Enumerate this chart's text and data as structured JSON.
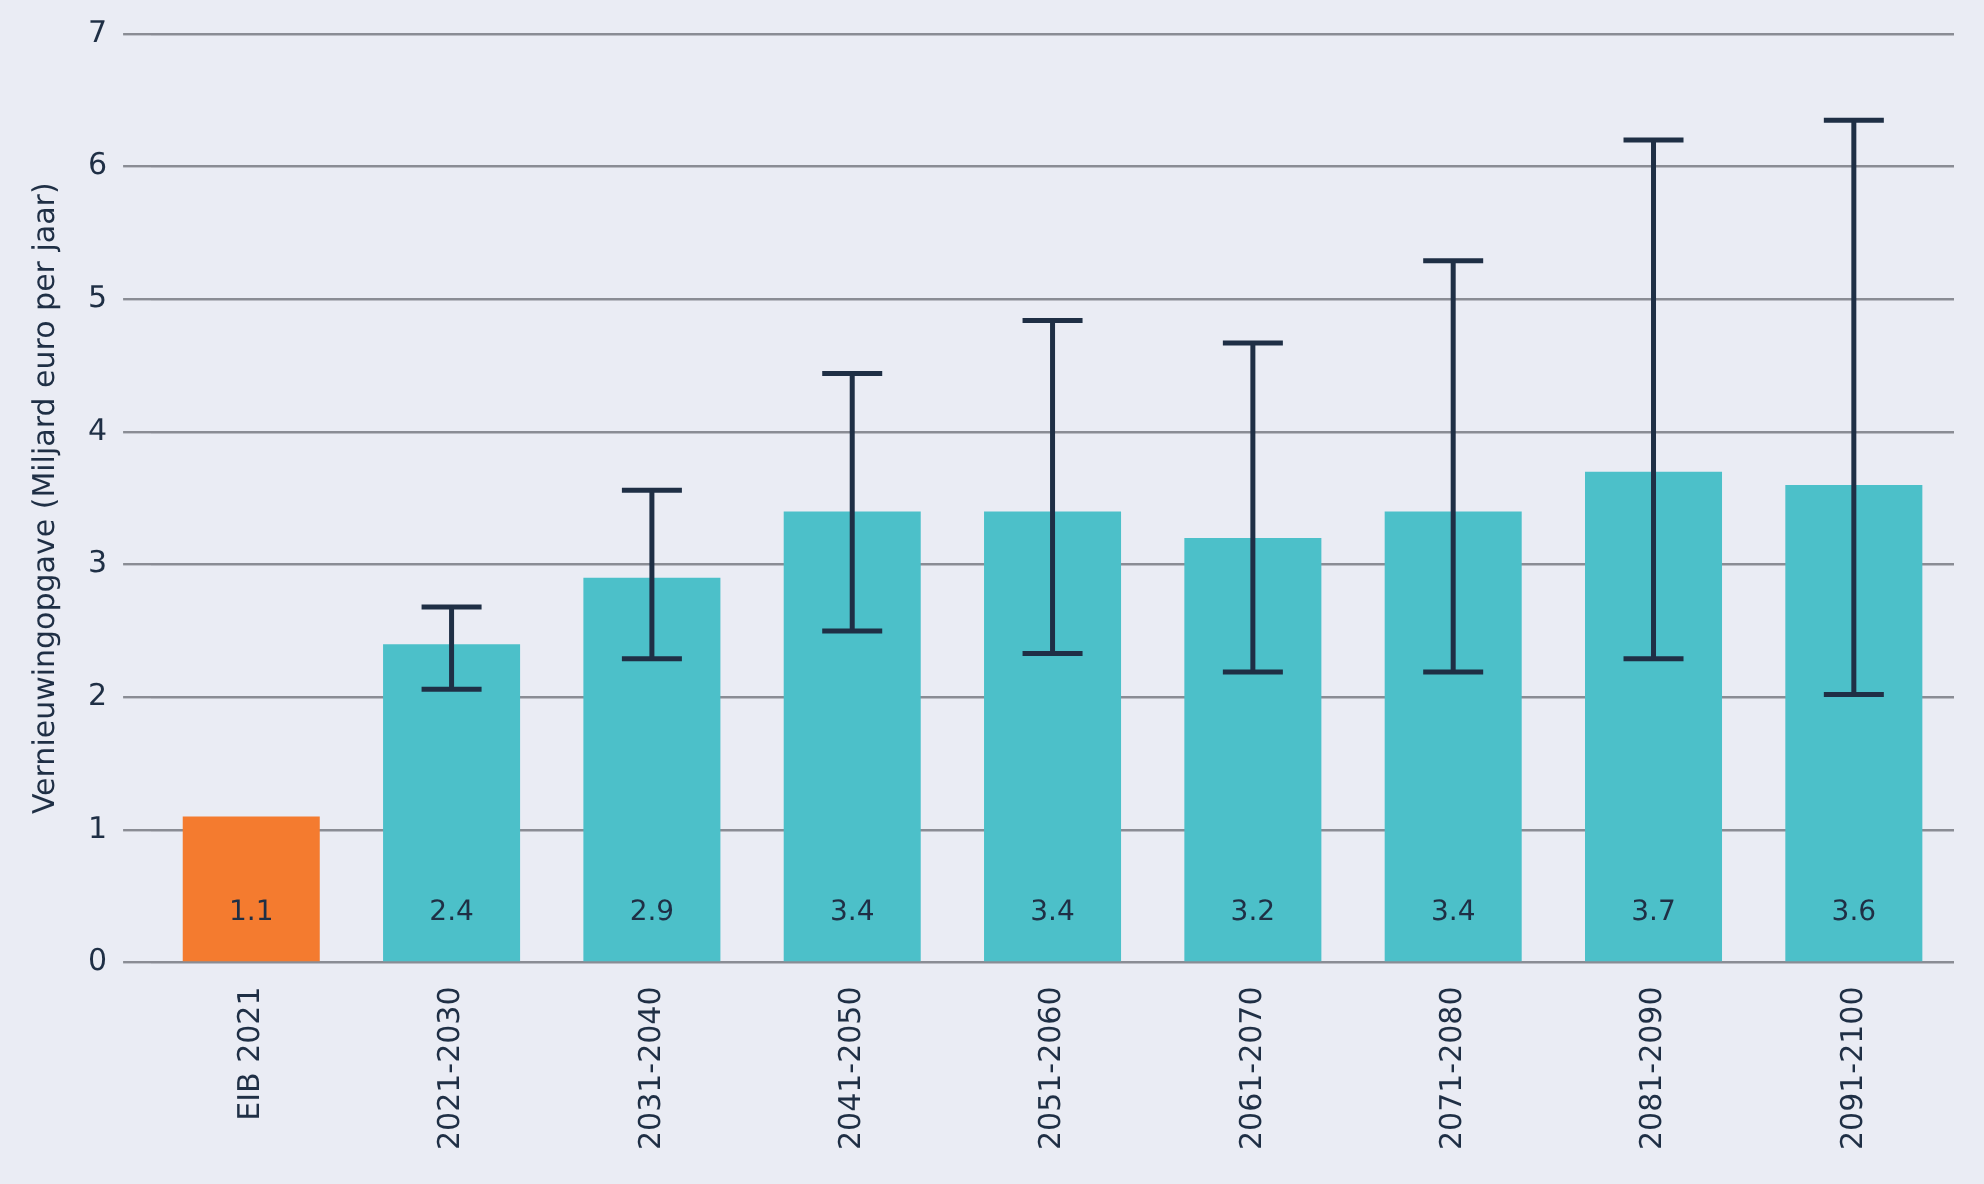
{
  "chart_data": {
    "type": "bar",
    "ylabel": "Vernieuwingopgave (Miljard euro per jaar)",
    "categories": [
      "EIB 2021",
      "2021-2030",
      "2031-2040",
      "2041-2050",
      "2051-2060",
      "2061-2070",
      "2071-2080",
      "2081-2090",
      "2091-2100"
    ],
    "values": [
      1.1,
      2.4,
      2.9,
      3.4,
      3.4,
      3.2,
      3.4,
      3.7,
      3.6
    ],
    "colors": [
      "#f47b2f",
      "#4cc0c9",
      "#4cc0c9",
      "#4cc0c9",
      "#4cc0c9",
      "#4cc0c9",
      "#4cc0c9",
      "#4cc0c9",
      "#4cc0c9"
    ],
    "errors": [
      null,
      [
        2.06,
        2.68
      ],
      [
        2.29,
        3.56
      ],
      [
        2.5,
        4.44
      ],
      [
        2.33,
        4.84
      ],
      [
        2.19,
        4.67
      ],
      [
        2.19,
        5.29
      ],
      [
        2.29,
        6.2
      ],
      [
        2.02,
        6.35
      ]
    ],
    "ylim": [
      0,
      7
    ],
    "yticks": [
      0,
      1,
      2,
      3,
      4,
      5,
      6,
      7
    ],
    "grid": "y",
    "data_labels": true
  }
}
